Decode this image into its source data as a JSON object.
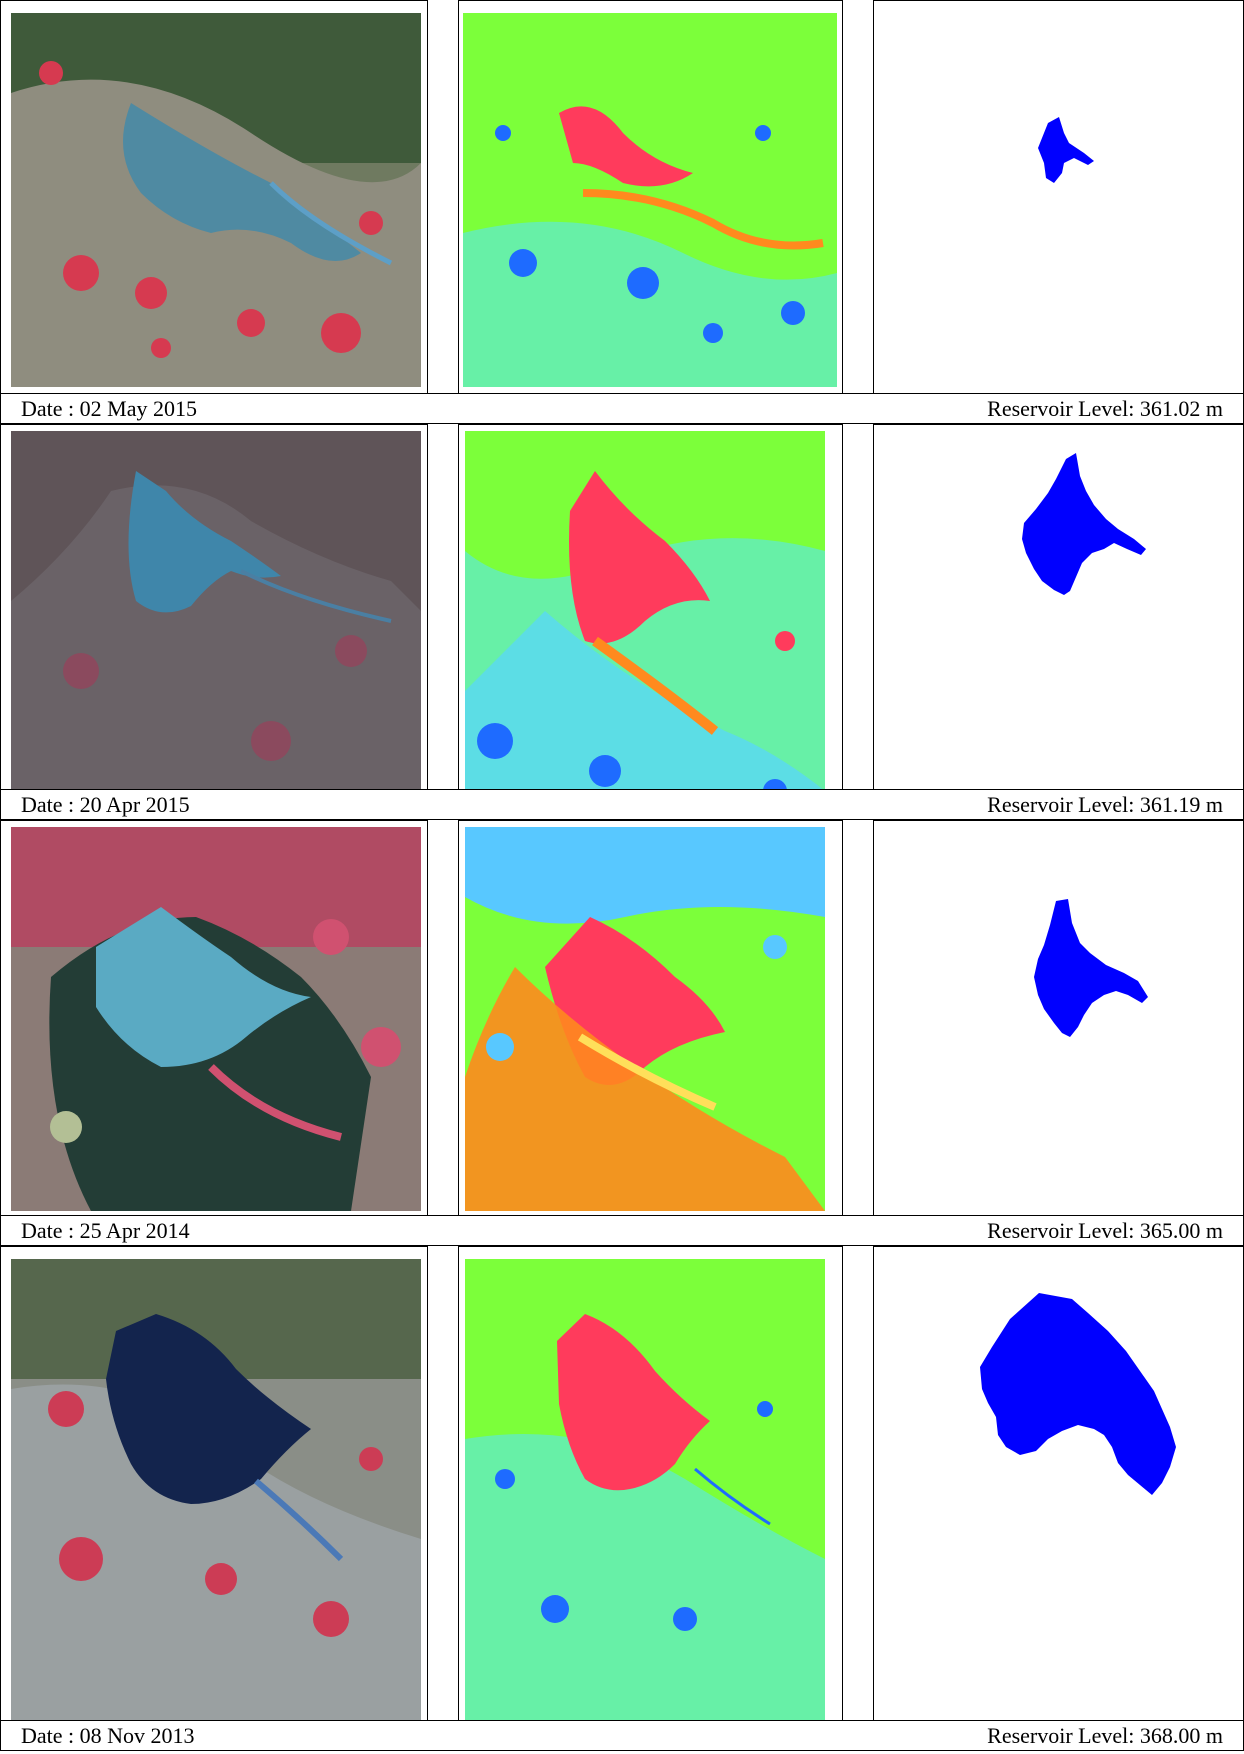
{
  "rows": [
    {
      "date_label": "Date :  02 May 2015",
      "level_label": "Reservoir Level: 361.02 m"
    },
    {
      "date_label": "Date :  20 Apr 2015",
      "level_label": "Reservoir Level: 361.19 m"
    },
    {
      "date_label": "Date :  25 Apr 2014",
      "level_label": "Reservoir Level: 365.00 m"
    },
    {
      "date_label": "Date :  08 Nov 2013",
      "level_label": "Reservoir Level: 368.00 m"
    }
  ],
  "colors": {
    "water_mask": "#0000ff",
    "index_high": "#ff3b5c",
    "index_mid": "#ff8a1e",
    "index_background": "#7cff3a",
    "index_low": "#1e6bff"
  }
}
